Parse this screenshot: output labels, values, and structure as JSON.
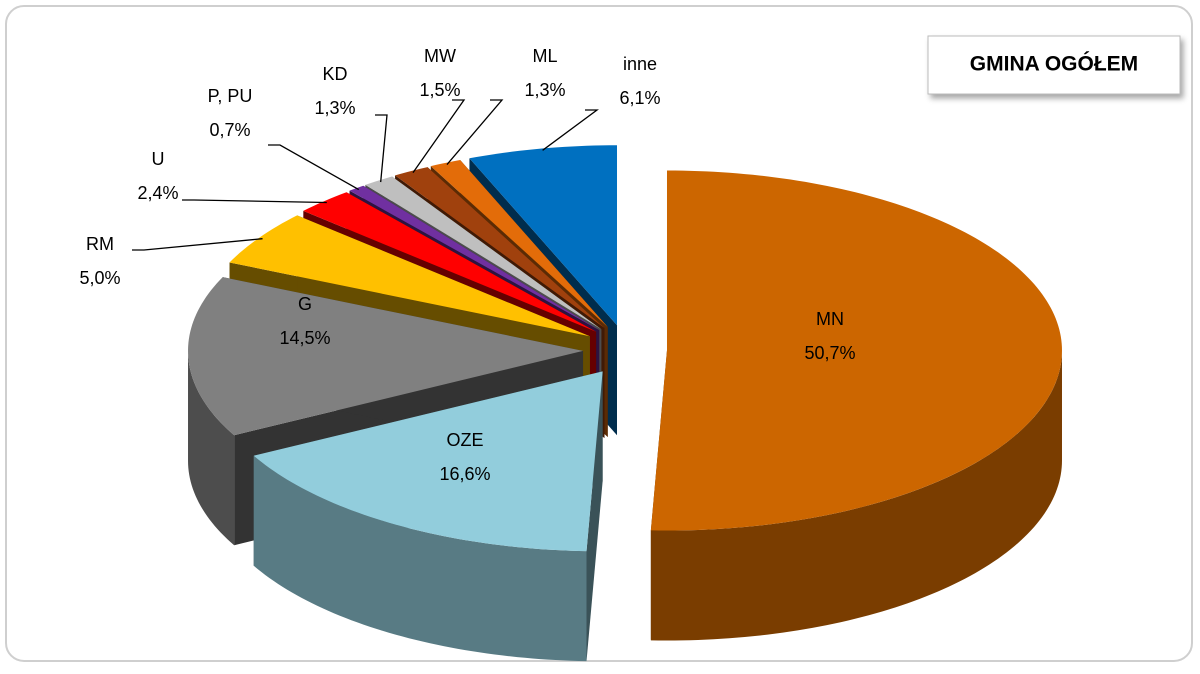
{
  "chart_data": {
    "type": "pie",
    "title": "GMINA OGÓŁEM",
    "categories": [
      "MN",
      "OZE",
      "G",
      "RM",
      "U",
      "P, PU",
      "KD",
      "MW",
      "ML",
      "inne"
    ],
    "values": [
      50.7,
      16.6,
      14.5,
      5.0,
      2.4,
      0.7,
      1.3,
      1.5,
      1.3,
      6.1
    ],
    "value_labels": [
      "50,7%",
      "16,6%",
      "14,5%",
      "5,0%",
      "2,4%",
      "0,7%",
      "1,3%",
      "1,5%",
      "1,3%",
      "6,1%"
    ],
    "colors": [
      "#cc6600",
      "#92cddc",
      "#808080",
      "#ffc000",
      "#ff0000",
      "#7030a0",
      "#bfbfbf",
      "#a0410d",
      "#e36c09",
      "#0070c0"
    ]
  }
}
